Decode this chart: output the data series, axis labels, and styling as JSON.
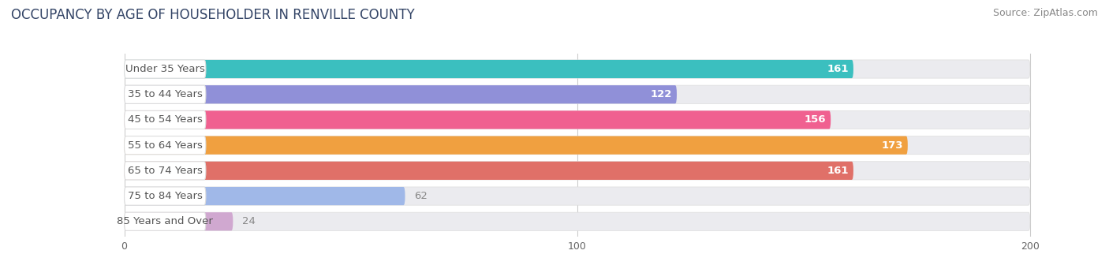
{
  "title": "OCCUPANCY BY AGE OF HOUSEHOLDER IN RENVILLE COUNTY",
  "source": "Source: ZipAtlas.com",
  "categories": [
    "Under 35 Years",
    "35 to 44 Years",
    "45 to 54 Years",
    "55 to 64 Years",
    "65 to 74 Years",
    "75 to 84 Years",
    "85 Years and Over"
  ],
  "values": [
    161,
    122,
    156,
    173,
    161,
    62,
    24
  ],
  "bar_colors": [
    "#3bbfbf",
    "#9090d8",
    "#f06090",
    "#f0a040",
    "#e07068",
    "#a0b8e8",
    "#d0a8d0"
  ],
  "track_color": "#ebebef",
  "label_bg_color": "#ffffff",
  "label_text_color": "#555555",
  "value_color_inside": "#ffffff",
  "value_color_outside": "#888888",
  "xlim": [
    -25,
    215
  ],
  "track_max": 200,
  "xticks": [
    0,
    100,
    200
  ],
  "bar_height": 0.72,
  "label_fontsize": 9.5,
  "title_fontsize": 12,
  "source_fontsize": 9,
  "background_color": "#ffffff",
  "grid_color": "#cccccc",
  "title_color": "#334466",
  "source_color": "#888888"
}
